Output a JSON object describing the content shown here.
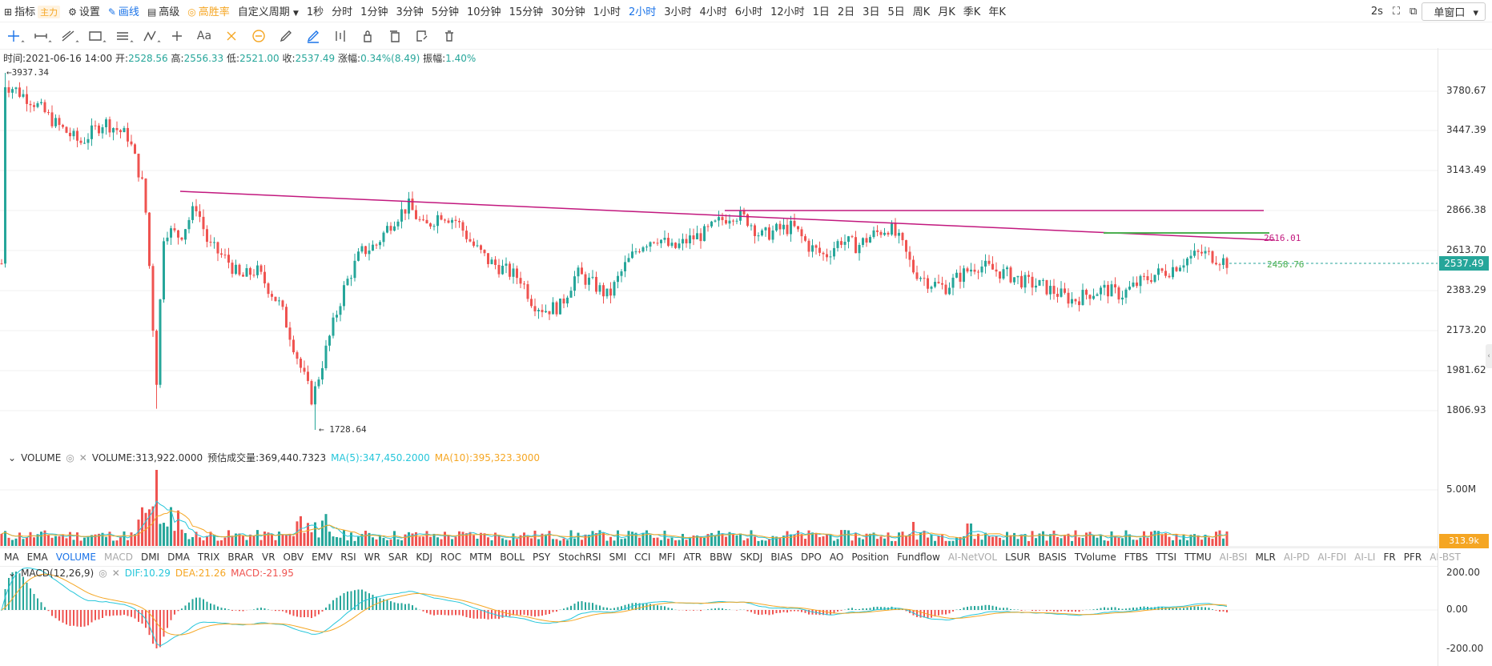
{
  "toolbar": {
    "indicator": "指标",
    "indicator_tag": "主力",
    "settings": "设置",
    "draw": "画线",
    "advanced": "高级",
    "winrate": "高胜率",
    "custom_period": "自定义周期",
    "periods": [
      "1秒",
      "分时",
      "1分钟",
      "3分钟",
      "5分钟",
      "10分钟",
      "15分钟",
      "30分钟",
      "1小时",
      "2小时",
      "3小时",
      "4小时",
      "6小时",
      "12小时",
      "1日",
      "2日",
      "3日",
      "5日",
      "周K",
      "月K",
      "季K",
      "年K"
    ],
    "active_period": "2小时",
    "refresh": "2s",
    "window_mode": "单窗口"
  },
  "draw_tools": [
    "crosshair-tool",
    "horizontal-line-tool",
    "trend-line-tool",
    "rectangle-tool",
    "parallel-channel-tool",
    "fibonacci-tool",
    "measure-tool",
    "text-tool",
    "magnet-tool",
    "magnet-strong-tool",
    "pen-tool",
    "pen-active-tool",
    "candle-replay-tool",
    "lock-tool",
    "copy-tool",
    "edit-tool",
    "delete-tool"
  ],
  "draw_text_label": "Aa",
  "info": {
    "time_label": "时间:",
    "time": "2021-06-16 14:00",
    "open_label": "开:",
    "open": "2528.56",
    "high_label": "高:",
    "high": "2556.33",
    "low_label": "低:",
    "low": "2521.00",
    "close_label": "收:",
    "close": "2537.49",
    "change_label": "涨幅:",
    "change": "0.34%(8.49)",
    "amp_label": "振幅:",
    "amp": "1.40%"
  },
  "price_axis": {
    "labels": [
      "3780.67",
      "3447.39",
      "3143.49",
      "2866.38",
      "2613.70",
      "2383.29",
      "2173.20",
      "1981.62",
      "1806.93"
    ],
    "values": [
      3780.67,
      3447.39,
      3143.49,
      2866.38,
      2613.7,
      2383.29,
      2173.2,
      1981.62,
      1806.93
    ],
    "last_price": "2537.49"
  },
  "annotations": {
    "high_marker": "3937.34",
    "low_marker": "1728.64",
    "level_upper": "2616.01",
    "level_lower": "2458.76"
  },
  "volume": {
    "title": "VOLUME",
    "value_text": "VOLUME:313,922.0000",
    "estimate_text": "预估成交量:369,440.7323",
    "ma5_text": "MA(5):347,450.2000",
    "ma10_text": "MA(10):395,323.3000",
    "axis_label": "5.00M",
    "last_box": "313.9k"
  },
  "indicators": [
    "MA",
    "EMA",
    "VOLUME",
    "MACD",
    "DMI",
    "DMA",
    "TRIX",
    "BRAR",
    "VR",
    "OBV",
    "EMV",
    "RSI",
    "WR",
    "SAR",
    "KDJ",
    "ROC",
    "MTM",
    "BOLL",
    "PSY",
    "StochRSI",
    "SMI",
    "CCI",
    "MFI",
    "ATR",
    "BBW",
    "SKDJ",
    "BIAS",
    "DPO",
    "AO",
    "Position",
    "Fundflow",
    "AI-NetVOL",
    "LSUR",
    "BASIS",
    "TVolume",
    "FTBS",
    "TTSI",
    "TTMU",
    "AI-BSI",
    "MLR",
    "AI-PD",
    "AI-FDI",
    "AI-LI",
    "FR",
    "PFR",
    "AI-BST"
  ],
  "active_indicator": "VOLUME",
  "dim_indicators": [
    "MACD",
    "AI-NetVOL",
    "AI-BSI",
    "AI-PD",
    "AI-FDI",
    "AI-LI",
    "AI-BST"
  ],
  "macd": {
    "title": "MACD(12,26,9)",
    "dif_text": "DIF:10.29",
    "dea_text": "DEA:21.26",
    "macd_text": "MACD:-21.95",
    "axis_labels": [
      "200.00",
      "0.00",
      "-200.00"
    ]
  },
  "colors": {
    "up": "#26a69a",
    "down": "#ef5350",
    "trendline": "#c2187e",
    "support": "#4caf50",
    "accent": "#1a73e8",
    "ma5": "#26c6da",
    "ma10": "#f5a623"
  }
}
